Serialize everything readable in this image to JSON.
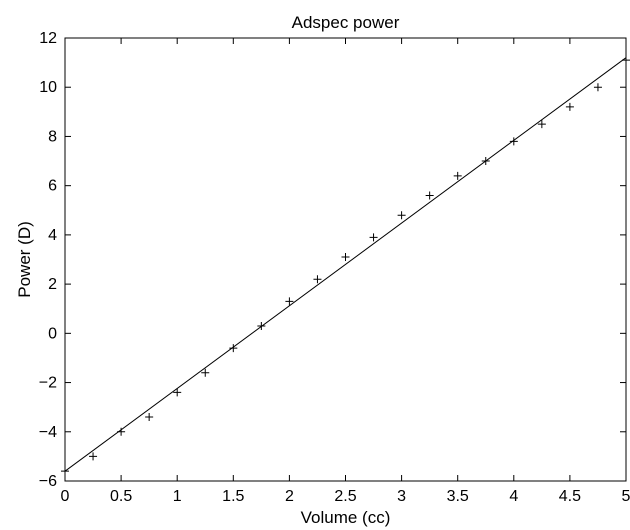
{
  "chart_data": {
    "type": "scatter",
    "title": "Adspec power",
    "xlabel": "Volume (cc)",
    "ylabel": "Power (D)",
    "xlim": [
      0,
      5
    ],
    "ylim": [
      -6,
      12
    ],
    "xticks": [
      "0",
      "0.5",
      "1",
      "1.5",
      "2",
      "2.5",
      "3",
      "3.5",
      "4",
      "4.5",
      "5"
    ],
    "yticks": [
      "−6",
      "−4",
      "−2",
      "0",
      "2",
      "4",
      "6",
      "8",
      "10",
      "12"
    ],
    "grid": false,
    "marker": "+",
    "colors": {
      "marks": "#000000",
      "axes": "#000000",
      "background": "#ffffff"
    },
    "series": [
      {
        "type": "scatter",
        "marker": "+",
        "points": [
          {
            "x": 0.0,
            "y": -5.6
          },
          {
            "x": 0.25,
            "y": -5.0
          },
          {
            "x": 0.5,
            "y": -4.0
          },
          {
            "x": 0.75,
            "y": -3.4
          },
          {
            "x": 1.0,
            "y": -2.4
          },
          {
            "x": 1.25,
            "y": -1.6
          },
          {
            "x": 1.5,
            "y": -0.6
          },
          {
            "x": 1.75,
            "y": 0.3
          },
          {
            "x": 2.0,
            "y": 1.3
          },
          {
            "x": 2.25,
            "y": 2.2
          },
          {
            "x": 2.5,
            "y": 3.1
          },
          {
            "x": 2.75,
            "y": 3.9
          },
          {
            "x": 3.0,
            "y": 4.8
          },
          {
            "x": 3.25,
            "y": 5.6
          },
          {
            "x": 3.5,
            "y": 6.4
          },
          {
            "x": 3.75,
            "y": 7.0
          },
          {
            "x": 4.0,
            "y": 7.8
          },
          {
            "x": 4.25,
            "y": 8.5
          },
          {
            "x": 4.5,
            "y": 9.2
          },
          {
            "x": 4.75,
            "y": 10.0
          },
          {
            "x": 5.0,
            "y": 11.1
          }
        ]
      },
      {
        "type": "line",
        "points": [
          {
            "x": 0.0,
            "y": -5.6
          },
          {
            "x": 5.0,
            "y": 11.2
          }
        ]
      }
    ]
  }
}
